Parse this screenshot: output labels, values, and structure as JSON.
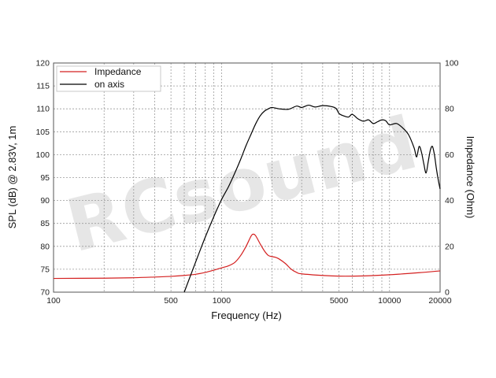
{
  "chart_data": {
    "type": "line",
    "xlabel": "Frequency (Hz)",
    "ylabel": "SPL (dB) @ 2.83V, 1m",
    "y2label": "Impedance (Ohm)",
    "xscale": "log",
    "xlim": [
      100,
      20000
    ],
    "ylim": [
      70,
      120
    ],
    "y2lim": [
      0,
      100
    ],
    "grid": true,
    "legend_position": "top-left",
    "x_ticks": [
      "100",
      "500",
      "1000",
      "5000",
      "10000",
      "20000"
    ],
    "y_ticks": [
      "70",
      "75",
      "80",
      "85",
      "90",
      "95",
      "100",
      "105",
      "110",
      "115",
      "120"
    ],
    "y2_ticks": [
      "0",
      "20",
      "40",
      "60",
      "80",
      "100"
    ],
    "watermark": "RCsound",
    "series": [
      {
        "name": "Impedance",
        "axis": "right",
        "color": "#d42020",
        "points": [
          [
            100,
            6.0
          ],
          [
            200,
            6.1
          ],
          [
            300,
            6.3
          ],
          [
            400,
            6.6
          ],
          [
            500,
            6.9
          ],
          [
            600,
            7.3
          ],
          [
            700,
            7.8
          ],
          [
            800,
            8.6
          ],
          [
            900,
            9.6
          ],
          [
            1000,
            10.6
          ],
          [
            1100,
            11.5
          ],
          [
            1200,
            13.0
          ],
          [
            1300,
            16.0
          ],
          [
            1400,
            20.0
          ],
          [
            1500,
            24.5
          ],
          [
            1550,
            25.3
          ],
          [
            1600,
            24.5
          ],
          [
            1700,
            21.0
          ],
          [
            1800,
            18.0
          ],
          [
            1900,
            16.0
          ],
          [
            2000,
            15.5
          ],
          [
            2100,
            15.2
          ],
          [
            2200,
            14.5
          ],
          [
            2400,
            12.5
          ],
          [
            2600,
            10.0
          ],
          [
            2800,
            8.6
          ],
          [
            3000,
            8.0
          ],
          [
            4000,
            7.3
          ],
          [
            5000,
            7.0
          ],
          [
            7000,
            7.1
          ],
          [
            10000,
            7.6
          ],
          [
            15000,
            8.5
          ],
          [
            20000,
            9.3
          ]
        ]
      },
      {
        "name": "on axis",
        "axis": "left",
        "color": "#000000",
        "points": [
          [
            600,
            70.0
          ],
          [
            700,
            76.5
          ],
          [
            800,
            82.0
          ],
          [
            900,
            86.5
          ],
          [
            1000,
            90.2
          ],
          [
            1100,
            93.0
          ],
          [
            1200,
            96.0
          ],
          [
            1300,
            99.0
          ],
          [
            1400,
            102.0
          ],
          [
            1500,
            104.5
          ],
          [
            1600,
            106.8
          ],
          [
            1700,
            108.5
          ],
          [
            1800,
            109.5
          ],
          [
            1900,
            110.0
          ],
          [
            2000,
            110.3
          ],
          [
            2200,
            110.0
          ],
          [
            2500,
            109.9
          ],
          [
            2800,
            110.6
          ],
          [
            3000,
            110.3
          ],
          [
            3300,
            110.8
          ],
          [
            3600,
            110.4
          ],
          [
            4000,
            110.7
          ],
          [
            4500,
            110.5
          ],
          [
            4800,
            110.1
          ],
          [
            5000,
            109.0
          ],
          [
            5300,
            108.5
          ],
          [
            5700,
            108.2
          ],
          [
            6000,
            108.8
          ],
          [
            6500,
            107.8
          ],
          [
            7000,
            107.3
          ],
          [
            7500,
            107.6
          ],
          [
            8000,
            106.8
          ],
          [
            8500,
            107.2
          ],
          [
            9000,
            107.6
          ],
          [
            9500,
            107.4
          ],
          [
            10000,
            106.5
          ],
          [
            11000,
            106.8
          ],
          [
            12000,
            105.8
          ],
          [
            13000,
            104.3
          ],
          [
            14000,
            101.5
          ],
          [
            14500,
            99.5
          ],
          [
            15000,
            101.8
          ],
          [
            15500,
            100.5
          ],
          [
            16000,
            98.0
          ],
          [
            16500,
            96.0
          ],
          [
            17000,
            98.5
          ],
          [
            17500,
            101.0
          ],
          [
            18000,
            101.8
          ],
          [
            18500,
            100.0
          ],
          [
            19000,
            97.0
          ],
          [
            19500,
            94.5
          ],
          [
            20000,
            92.5
          ]
        ]
      }
    ]
  }
}
